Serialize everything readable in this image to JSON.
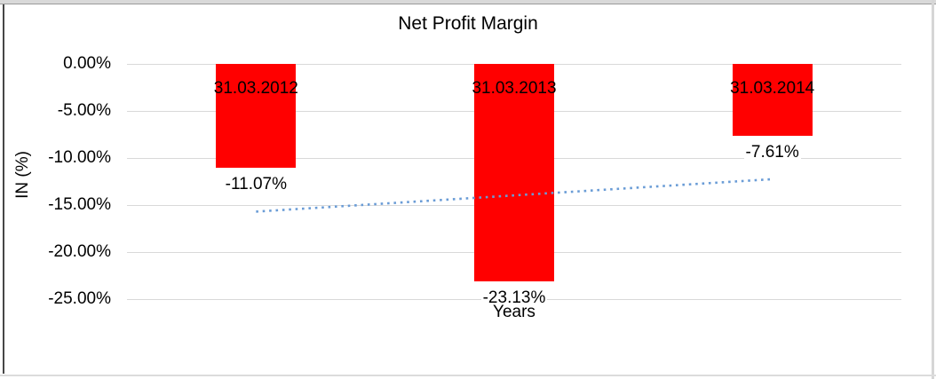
{
  "chart_data": {
    "type": "bar",
    "title": "Net Profit Margin",
    "xlabel": "Years",
    "ylabel": "IN (%)",
    "categories": [
      "31.03.2012",
      "31.03.2013",
      "31.03.2014"
    ],
    "values": [
      -11.07,
      -23.13,
      -7.61
    ],
    "value_labels": [
      "-11.07%",
      "-23.13%",
      "-7.61%"
    ],
    "y_ticks": [
      {
        "label": "0.00%",
        "value": 0
      },
      {
        "label": "-5.00%",
        "value": -5
      },
      {
        "label": "-10.00%",
        "value": -10
      },
      {
        "label": "-15.00%",
        "value": -15
      },
      {
        "label": "-20.00%",
        "value": -20
      },
      {
        "label": "-25.00%",
        "value": -25
      }
    ],
    "ylim": [
      0,
      -25
    ],
    "grid": true,
    "legend": false,
    "label_position": "category-inside-top-value-outside-end",
    "colors": {
      "bar": "#FF0000",
      "gridline": "#D9D9D9",
      "trendline": "#6A9CD6",
      "text": "#000000",
      "background": "#FFFFFF"
    },
    "trendline": {
      "type": "linear",
      "style": "dotted",
      "start_value": -15.7,
      "end_value": -12.25
    }
  }
}
